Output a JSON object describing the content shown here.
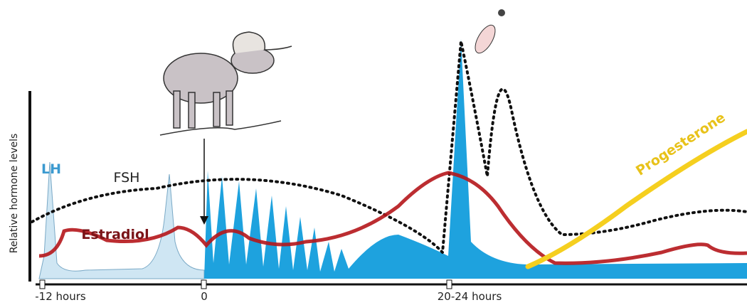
{
  "axis": {
    "y_label": "Relative hormone levels",
    "x_labels": [
      "-12 hours",
      "0",
      "20-24 hours"
    ]
  },
  "curves": [
    {
      "label": "LH"
    },
    {
      "label": "FSH"
    },
    {
      "label": "Estradiol"
    },
    {
      "label": "Progesterone"
    }
  ]
}
